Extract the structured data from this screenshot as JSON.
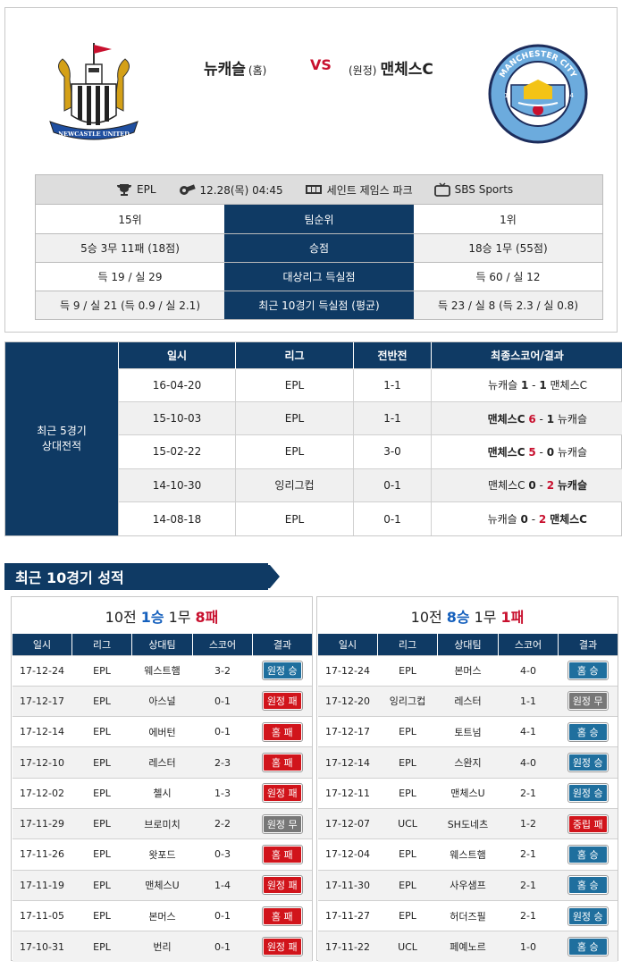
{
  "header": {
    "home_team": "뉴캐슬",
    "home_tag": "(홈)",
    "vs": "VS",
    "away_tag": "(원정)",
    "away_team": "맨체스C",
    "home_logo_text": "NEWCASTLE UNITED",
    "away_logo_text": "MANCHESTER CITY",
    "away_logo_years": [
      "18",
      "94"
    ]
  },
  "match_info": {
    "league": "EPL",
    "datetime": "12.28(목) 04:45",
    "stadium": "세인트 제임스 파크",
    "broadcast": "SBS Sports"
  },
  "stats": [
    {
      "home": "15위",
      "label": "팀순위",
      "away": "1위"
    },
    {
      "home": "5승 3무 11패 (18점)",
      "label": "승점",
      "away": "18승 1무 (55점)"
    },
    {
      "home": "득 19 / 실 29",
      "label": "대상리그 득실점",
      "away": "득 60 / 실 12"
    },
    {
      "home": "득 9 / 실 21 (득 0.9 / 실 2.1)",
      "label": "최근 10경기 득실점 (평균)",
      "away": "득 23 / 실 8 (득 2.3 / 실 0.8)"
    }
  ],
  "h2h": {
    "label_line1": "최근 5경기",
    "label_line2": "상대전적",
    "headers": [
      "일시",
      "리그",
      "전반전",
      "최종스코어/결과"
    ],
    "rows": [
      {
        "date": "16-04-20",
        "league": "EPL",
        "half": "1-1",
        "t1": "뉴캐슬",
        "s1": "1",
        "s2": "1",
        "t2": "맨체스C"
      },
      {
        "date": "15-10-03",
        "league": "EPL",
        "half": "1-1",
        "t1": "맨체스C",
        "s1": "6",
        "s2": "1",
        "t2": "뉴캐슬"
      },
      {
        "date": "15-02-22",
        "league": "EPL",
        "half": "3-0",
        "t1": "맨체스C",
        "s1": "5",
        "s2": "0",
        "t2": "뉴캐슬"
      },
      {
        "date": "14-10-30",
        "league": "잉리그컵",
        "half": "0-1",
        "t1": "맨체스C",
        "s1": "0",
        "s2": "2",
        "t2": "뉴캐슬"
      },
      {
        "date": "14-08-18",
        "league": "EPL",
        "half": "0-1",
        "t1": "뉴캐슬",
        "s1": "0",
        "s2": "2",
        "t2": "맨체스C"
      }
    ]
  },
  "recent": {
    "title": "최근 10경기 성적",
    "headers": [
      "일시",
      "리그",
      "상대팀",
      "스코어",
      "결과"
    ],
    "home": {
      "summary_prefix": "10전",
      "wins": "1승",
      "draws": "1무",
      "losses": "8패",
      "rows": [
        {
          "date": "17-12-24",
          "league": "EPL",
          "opp": "웨스트햄",
          "score": "3-2",
          "result": "원정 승",
          "type": "away-win"
        },
        {
          "date": "17-12-17",
          "league": "EPL",
          "opp": "아스널",
          "score": "0-1",
          "result": "원정 패",
          "type": "away-loss"
        },
        {
          "date": "17-12-14",
          "league": "EPL",
          "opp": "에버턴",
          "score": "0-1",
          "result": "홈 패",
          "type": "home-loss"
        },
        {
          "date": "17-12-10",
          "league": "EPL",
          "opp": "레스터",
          "score": "2-3",
          "result": "홈 패",
          "type": "home-loss"
        },
        {
          "date": "17-12-02",
          "league": "EPL",
          "opp": "첼시",
          "score": "1-3",
          "result": "원정 패",
          "type": "away-loss"
        },
        {
          "date": "17-11-29",
          "league": "EPL",
          "opp": "브로미치",
          "score": "2-2",
          "result": "원정 무",
          "type": "draw"
        },
        {
          "date": "17-11-26",
          "league": "EPL",
          "opp": "왓포드",
          "score": "0-3",
          "result": "홈 패",
          "type": "home-loss"
        },
        {
          "date": "17-11-19",
          "league": "EPL",
          "opp": "맨체스U",
          "score": "1-4",
          "result": "원정 패",
          "type": "away-loss"
        },
        {
          "date": "17-11-05",
          "league": "EPL",
          "opp": "본머스",
          "score": "0-1",
          "result": "홈 패",
          "type": "home-loss"
        },
        {
          "date": "17-10-31",
          "league": "EPL",
          "opp": "번리",
          "score": "0-1",
          "result": "원정 패",
          "type": "away-loss"
        }
      ]
    },
    "away": {
      "summary_prefix": "10전",
      "wins": "8승",
      "draws": "1무",
      "losses": "1패",
      "rows": [
        {
          "date": "17-12-24",
          "league": "EPL",
          "opp": "본머스",
          "score": "4-0",
          "result": "홈 승",
          "type": "home-win"
        },
        {
          "date": "17-12-20",
          "league": "잉리그컵",
          "opp": "레스터",
          "score": "1-1",
          "result": "원정 무",
          "type": "draw"
        },
        {
          "date": "17-12-17",
          "league": "EPL",
          "opp": "토트넘",
          "score": "4-1",
          "result": "홈 승",
          "type": "home-win"
        },
        {
          "date": "17-12-14",
          "league": "EPL",
          "opp": "스완지",
          "score": "4-0",
          "result": "원정 승",
          "type": "away-win"
        },
        {
          "date": "17-12-11",
          "league": "EPL",
          "opp": "맨체스U",
          "score": "2-1",
          "result": "원정 승",
          "type": "away-win"
        },
        {
          "date": "17-12-07",
          "league": "UCL",
          "opp": "SH도네츠",
          "score": "1-2",
          "result": "중립 패",
          "type": "neutral-loss"
        },
        {
          "date": "17-12-04",
          "league": "EPL",
          "opp": "웨스트햄",
          "score": "2-1",
          "result": "홈 승",
          "type": "home-win"
        },
        {
          "date": "17-11-30",
          "league": "EPL",
          "opp": "사우샘프",
          "score": "2-1",
          "result": "홈 승",
          "type": "home-win"
        },
        {
          "date": "17-11-27",
          "league": "EPL",
          "opp": "허더즈필",
          "score": "2-1",
          "result": "원정 승",
          "type": "away-win"
        },
        {
          "date": "17-11-22",
          "league": "UCL",
          "opp": "페예노르",
          "score": "1-0",
          "result": "홈 승",
          "type": "home-win"
        }
      ]
    }
  },
  "colors": {
    "navy": "#0f3a64",
    "red": "#c8102e",
    "blue_win": "#1f6f9e",
    "red_loss": "#d1141b",
    "gray_draw": "#777777"
  }
}
